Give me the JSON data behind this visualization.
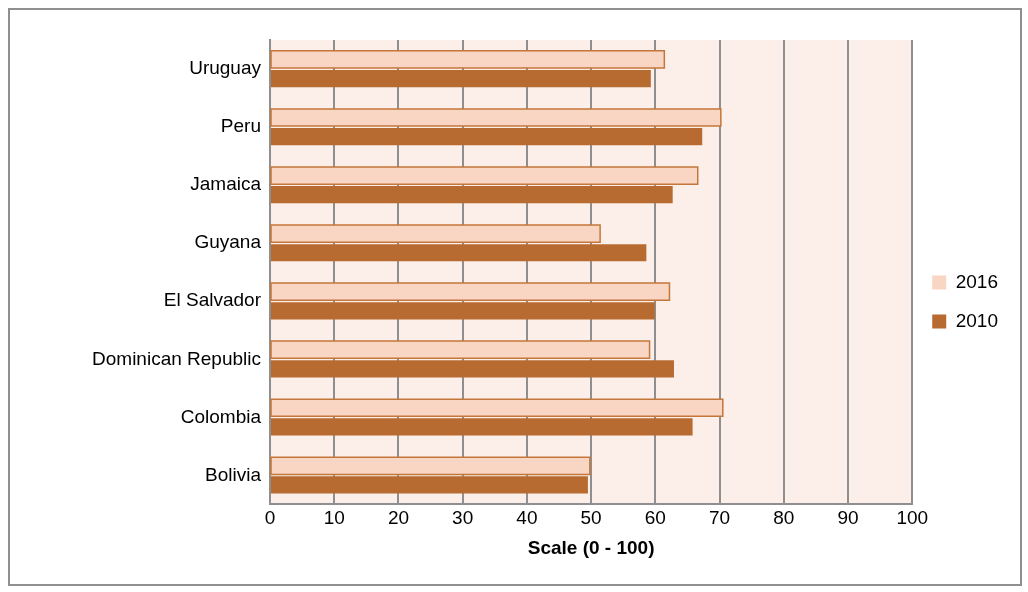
{
  "chart_data": {
    "type": "bar",
    "orientation": "horizontal",
    "xlabel": "Scale (0 - 100)",
    "categories": [
      "Uruguay",
      "Peru",
      "Jamaica",
      "Guyana",
      "El Salvador",
      "Dominican Republic",
      "Colombia",
      "Bolivia"
    ],
    "series": [
      {
        "name": "2016",
        "color": "#f9d5c3",
        "values": [
          61.4,
          70.2,
          66.6,
          51.4,
          62.2,
          59.1,
          70.5,
          49.8
        ]
      },
      {
        "name": "2010",
        "color": "#b86b30",
        "values": [
          59.3,
          67.3,
          62.7,
          58.6,
          59.9,
          62.9,
          65.8,
          49.5
        ]
      }
    ],
    "xlim": [
      0,
      100
    ],
    "xticks": [
      0,
      10,
      20,
      30,
      40,
      50,
      60,
      70,
      80,
      90,
      100
    ],
    "grid": "x",
    "legend": "right"
  }
}
